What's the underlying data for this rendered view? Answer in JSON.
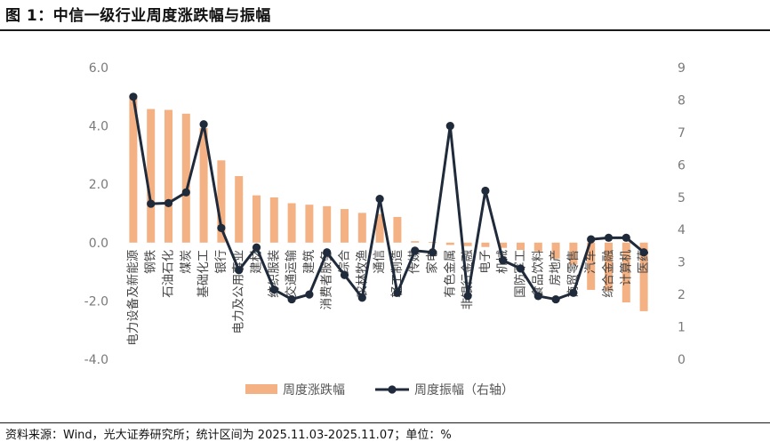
{
  "figure": {
    "title": "图 1：中信一级行业周度涨跌幅与振幅",
    "source": "资料来源：Wind，光大证券研究所；统计区间为 2025.11.03-2025.11.07；单位：%"
  },
  "colors": {
    "bar": "#f4b183",
    "line": "#1f2a3a",
    "axis_text": "#7a7a7a"
  },
  "chart_data": {
    "type": "bar+line",
    "categories": [
      "电力设备及新能源",
      "钢铁",
      "石油石化",
      "煤炭",
      "基础化工",
      "银行",
      "电力及公用事业",
      "建材",
      "纺织服装",
      "交通运输",
      "建筑",
      "消费者服务",
      "综合",
      "农林牧渔",
      "通信",
      "轻工制造",
      "传媒",
      "家电",
      "有色金属",
      "非银行金融",
      "电子",
      "机械",
      "国防军工",
      "食品饮料",
      "房地产",
      "商贸零售",
      "汽车",
      "综合金融",
      "计算机",
      "医药"
    ],
    "series": [
      {
        "name": "周度涨跌幅",
        "axis": "left",
        "type": "bar",
        "values": [
          5.05,
          4.58,
          4.55,
          4.42,
          3.93,
          2.82,
          2.28,
          1.62,
          1.55,
          1.35,
          1.3,
          1.25,
          1.15,
          1.02,
          0.98,
          0.88,
          0.05,
          0.02,
          -0.08,
          -0.12,
          -0.15,
          -0.18,
          -0.25,
          -0.3,
          -0.55,
          -0.75,
          -1.62,
          -1.65,
          -2.05,
          -2.35
        ]
      },
      {
        "name": "周度振幅（右轴）",
        "axis": "right",
        "type": "line",
        "values": [
          8.1,
          4.8,
          4.82,
          5.15,
          7.25,
          4.05,
          2.75,
          3.45,
          2.15,
          1.85,
          2.0,
          3.3,
          2.6,
          1.9,
          4.95,
          2.05,
          3.35,
          3.3,
          7.2,
          1.95,
          5.2,
          3.05,
          2.8,
          1.95,
          1.85,
          2.05,
          3.7,
          3.75,
          3.75,
          3.3
        ]
      }
    ],
    "y_left": {
      "ticks": [
        "6.0",
        "4.0",
        "2.0",
        "0.0",
        "-2.0",
        "-4.0"
      ],
      "ylim": [
        -4,
        6
      ]
    },
    "y_right": {
      "ticks": [
        "9",
        "8",
        "7",
        "6",
        "5",
        "4",
        "3",
        "2",
        "1",
        "0"
      ],
      "ylim": [
        0,
        9
      ]
    },
    "legend": {
      "position": "bottom-center",
      "items": [
        "周度涨跌幅",
        "周度振幅（右轴）"
      ]
    },
    "grid": false
  }
}
